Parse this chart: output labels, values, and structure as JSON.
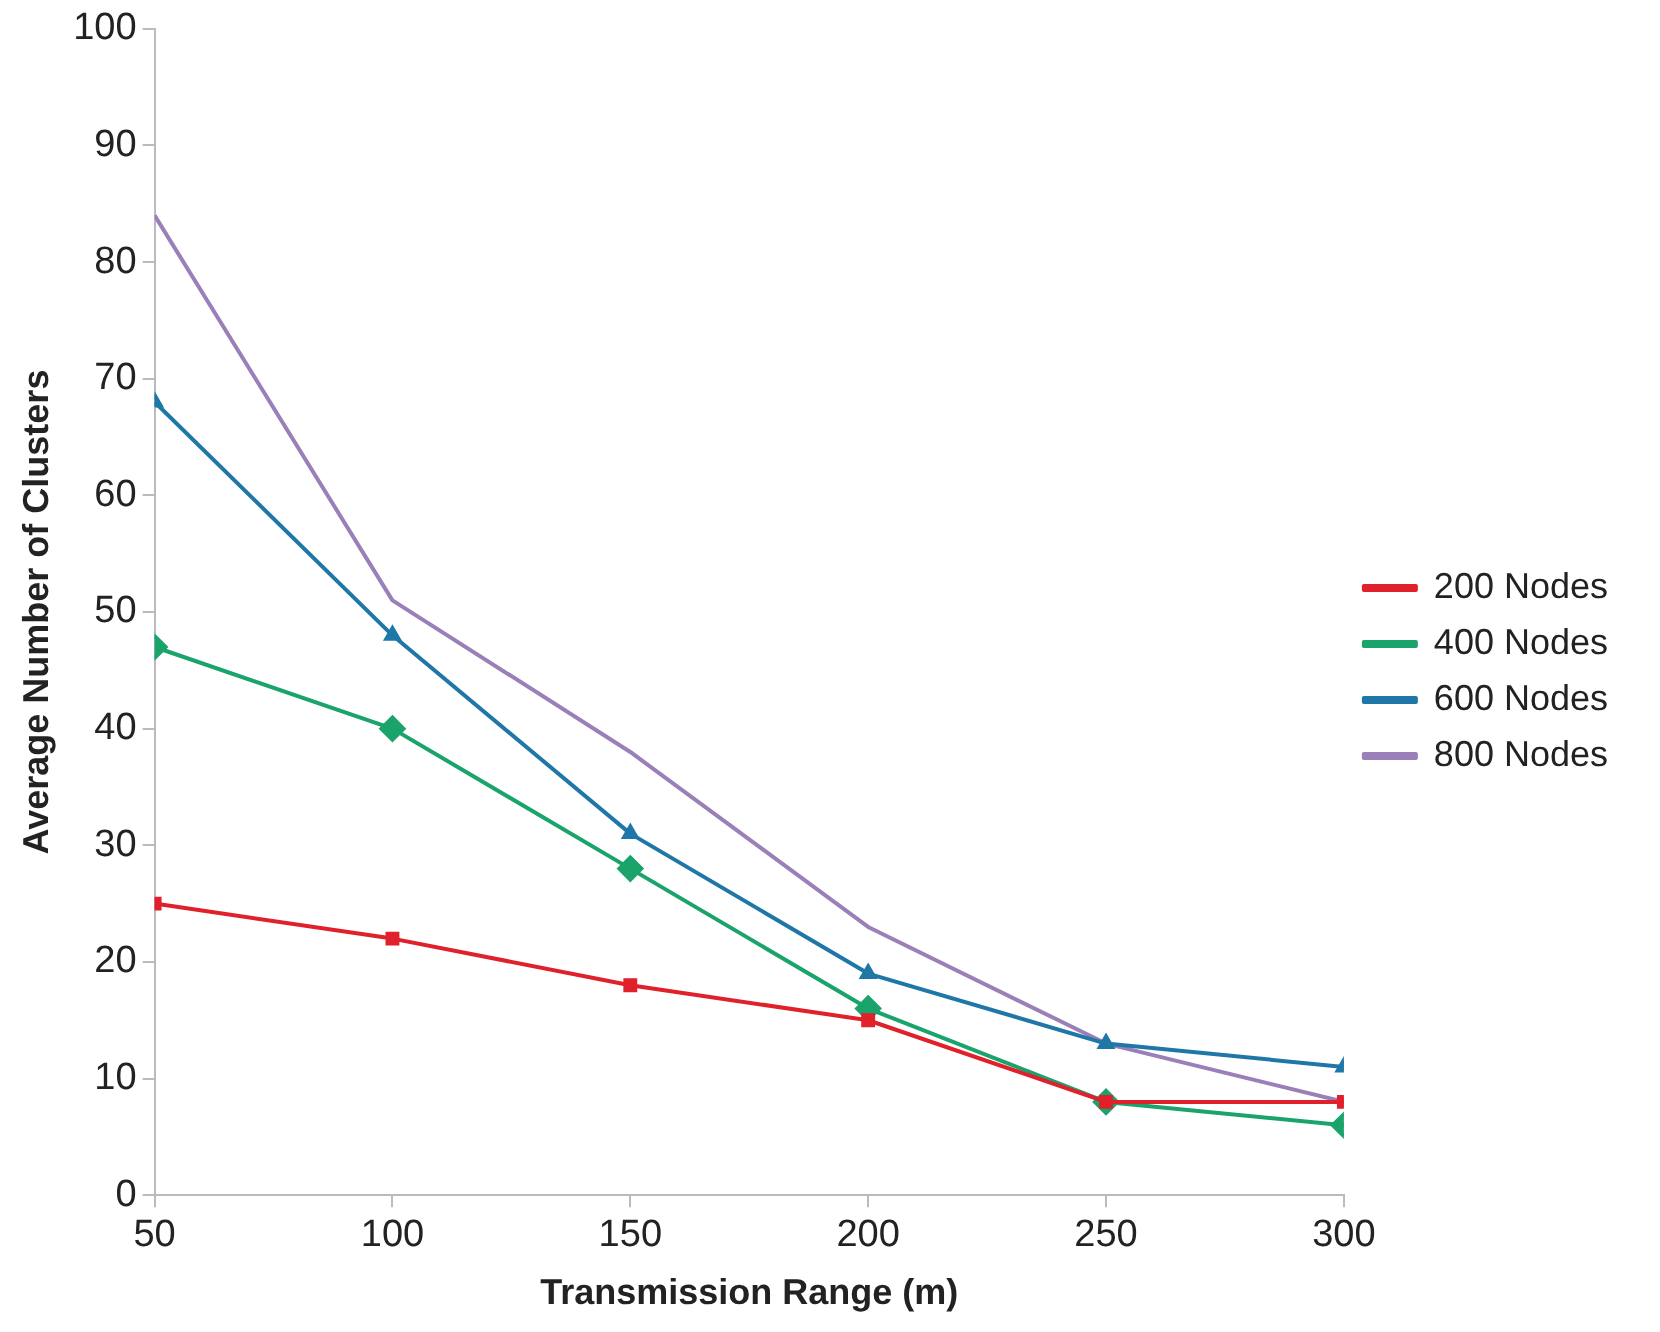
{
  "chart_data": {
    "type": "line",
    "xlabel": "Transmission Range (m)",
    "ylabel": "Average Number of Clusters",
    "x": [
      50,
      100,
      150,
      200,
      250,
      300
    ],
    "series": [
      {
        "name": "200 Nodes",
        "color": "#e0202a",
        "marker": "square",
        "values": [
          25,
          22,
          18,
          15,
          8,
          8
        ]
      },
      {
        "name": "400 Nodes",
        "color": "#1aa36a",
        "marker": "diamond",
        "values": [
          47,
          40,
          28,
          16,
          8,
          6
        ]
      },
      {
        "name": "600 Nodes",
        "color": "#1f77a8",
        "marker": "triangle",
        "values": [
          68,
          48,
          31,
          19,
          13,
          11
        ]
      },
      {
        "name": "800 Nodes",
        "color": "#9a7fb8",
        "marker": "none",
        "values": [
          84,
          51,
          38,
          23,
          13,
          8
        ]
      }
    ],
    "xlim": [
      50,
      300
    ],
    "xticks": [
      50,
      100,
      150,
      200,
      250,
      300
    ],
    "ylim": [
      0,
      100
    ],
    "yticks": [
      0,
      10,
      20,
      30,
      40,
      50,
      60,
      70,
      80,
      90,
      100
    ],
    "grid": false,
    "legend": "right",
    "line_style": "solid"
  }
}
